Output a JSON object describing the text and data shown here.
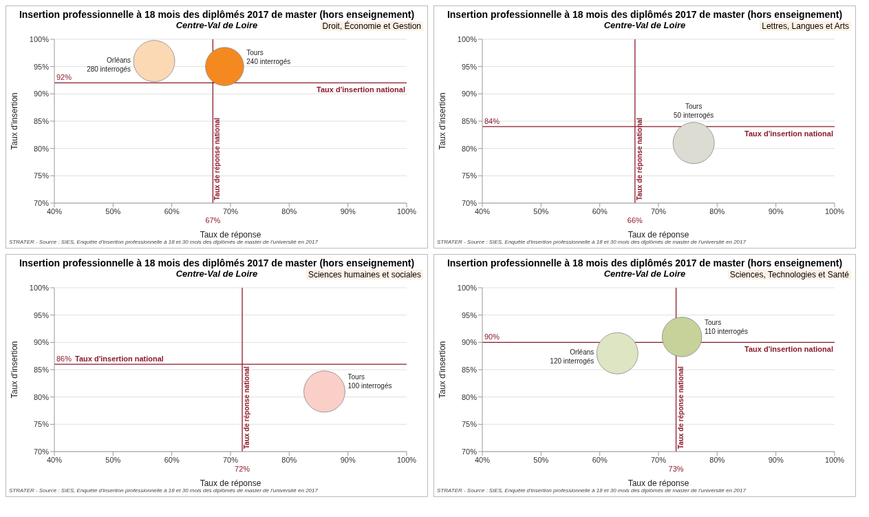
{
  "chart_data": [
    {
      "type": "bubble",
      "title": "Insertion professionnelle à 18 mois des diplômés 2017 de master (hors enseignement)",
      "subtitle": "Centre-Val de Loire",
      "xlabel": "Taux de réponse",
      "ylabel": "Taux d'insertion",
      "xlim": [
        40,
        100
      ],
      "ylim": [
        70,
        100
      ],
      "xticks": [
        {
          "value": 40,
          "label": "40%"
        },
        {
          "value": 50,
          "label": "50%"
        },
        {
          "value": 60,
          "label": "60%"
        },
        {
          "value": 70,
          "label": "70%"
        },
        {
          "value": 80,
          "label": "80%"
        },
        {
          "value": 90,
          "label": "90%"
        },
        {
          "value": 100,
          "label": "100%"
        }
      ],
      "yticks": [
        {
          "value": 70,
          "label": "70%"
        },
        {
          "value": 75,
          "label": "75%"
        },
        {
          "value": 80,
          "label": "80%"
        },
        {
          "value": 85,
          "label": "85%"
        },
        {
          "value": 90,
          "label": "90%"
        },
        {
          "value": 95,
          "label": "95%"
        },
        {
          "value": 100,
          "label": "100%"
        }
      ],
      "grid": "y",
      "series": [
        {
          "name": "Orléans",
          "color": "#fbd9b5",
          "x": [
            57
          ],
          "values": [
            96
          ],
          "sizes": [
            1
          ]
        },
        {
          "name": "Tours",
          "color": "#f4891f",
          "x": [
            69
          ],
          "values": [
            95
          ],
          "sizes": [
            0.86
          ]
        }
      ],
      "ref_lines": [
        {
          "axis": "x",
          "value": 67,
          "label": "Taux de réponse national",
          "color": "#8b1a2b"
        },
        {
          "axis": "y",
          "value": 92,
          "label": "Taux d'insertion national",
          "color": "#8b1a2b"
        }
      ],
      "annotations": [
        "Droit, Économie et Gestion",
        "280 interrogés",
        "240 interrogés",
        "67%",
        "92%",
        "STRATER - Source : SIES, Enquête d'insertion professionnelle à 18 et 30 mois des diplômés de master de l'université en 2017"
      ]
    },
    {
      "type": "bubble",
      "title": "Insertion professionnelle à 18 mois des diplômés 2017 de master (hors enseignement)",
      "subtitle": "Centre-Val de Loire",
      "xlabel": "Taux de réponse",
      "ylabel": "Taux d'insertion",
      "xlim": [
        40,
        100
      ],
      "ylim": [
        70,
        100
      ],
      "xticks": [
        {
          "value": 40,
          "label": "40%"
        },
        {
          "value": 50,
          "label": "50%"
        },
        {
          "value": 60,
          "label": "60%"
        },
        {
          "value": 70,
          "label": "70%"
        },
        {
          "value": 80,
          "label": "80%"
        },
        {
          "value": 90,
          "label": "90%"
        },
        {
          "value": 100,
          "label": "100%"
        }
      ],
      "yticks": [
        {
          "value": 70,
          "label": "70%"
        },
        {
          "value": 75,
          "label": "75%"
        },
        {
          "value": 80,
          "label": "80%"
        },
        {
          "value": 85,
          "label": "85%"
        },
        {
          "value": 90,
          "label": "90%"
        },
        {
          "value": 95,
          "label": "95%"
        },
        {
          "value": 100,
          "label": "100%"
        }
      ],
      "grid": "y",
      "series": [
        {
          "name": "Tours",
          "color": "#dcdcd2",
          "x": [
            76
          ],
          "values": [
            81
          ],
          "sizes": [
            1
          ]
        }
      ],
      "ref_lines": [
        {
          "axis": "x",
          "value": 66,
          "label": "Taux de réponse national",
          "color": "#8b1a2b"
        },
        {
          "axis": "y",
          "value": 84,
          "label": "Taux d'insertion national",
          "color": "#8b1a2b"
        }
      ],
      "annotations": [
        "Lettres, Langues et Arts",
        "50 interrogés",
        "66%",
        "84%",
        "STRATER - Source : SIES, Enquête d'insertion professionnelle à 18 et 30 mois des diplômés de master de l'université en 2017"
      ]
    },
    {
      "type": "bubble",
      "title": "Insertion professionnelle à 18 mois des diplômés 2017 de master (hors enseignement)",
      "subtitle": "Centre-Val de Loire",
      "xlabel": "Taux de réponse",
      "ylabel": "Taux d'insertion",
      "xlim": [
        40,
        100
      ],
      "ylim": [
        70,
        100
      ],
      "xticks": [
        {
          "value": 40,
          "label": "40%"
        },
        {
          "value": 50,
          "label": "50%"
        },
        {
          "value": 60,
          "label": "60%"
        },
        {
          "value": 70,
          "label": "70%"
        },
        {
          "value": 80,
          "label": "80%"
        },
        {
          "value": 90,
          "label": "90%"
        },
        {
          "value": 100,
          "label": "100%"
        }
      ],
      "yticks": [
        {
          "value": 70,
          "label": "70%"
        },
        {
          "value": 75,
          "label": "75%"
        },
        {
          "value": 80,
          "label": "80%"
        },
        {
          "value": 85,
          "label": "85%"
        },
        {
          "value": 90,
          "label": "90%"
        },
        {
          "value": 95,
          "label": "95%"
        },
        {
          "value": 100,
          "label": "100%"
        }
      ],
      "grid": "y",
      "series": [
        {
          "name": "Tours",
          "color": "#f9cfc8",
          "x": [
            86
          ],
          "values": [
            81
          ],
          "sizes": [
            1
          ]
        }
      ],
      "ref_lines": [
        {
          "axis": "x",
          "value": 72,
          "label": "Taux de réponse national",
          "color": "#8b1a2b"
        },
        {
          "axis": "y",
          "value": 86,
          "label": "Taux d'insertion national",
          "color": "#8b1a2b"
        }
      ],
      "annotations": [
        "Sciences humaines et sociales",
        "100 interrogés",
        "72%",
        "86%",
        "STRATER - Source : SIES, Enquête d'insertion professionnelle à 18 et 30 mois des diplômés de master de l'université en 2017"
      ]
    },
    {
      "type": "bubble",
      "title": "Insertion professionnelle à 18 mois des diplômés 2017 de master (hors enseignement)",
      "subtitle": "Centre-Val de Loire",
      "xlabel": "Taux de réponse",
      "ylabel": "Taux d'insertion",
      "xlim": [
        40,
        100
      ],
      "ylim": [
        70,
        100
      ],
      "xticks": [
        {
          "value": 40,
          "label": "40%"
        },
        {
          "value": 50,
          "label": "50%"
        },
        {
          "value": 60,
          "label": "60%"
        },
        {
          "value": 70,
          "label": "70%"
        },
        {
          "value": 80,
          "label": "80%"
        },
        {
          "value": 90,
          "label": "90%"
        },
        {
          "value": 100,
          "label": "100%"
        }
      ],
      "yticks": [
        {
          "value": 70,
          "label": "70%"
        },
        {
          "value": 75,
          "label": "75%"
        },
        {
          "value": 80,
          "label": "80%"
        },
        {
          "value": 85,
          "label": "85%"
        },
        {
          "value": 90,
          "label": "90%"
        },
        {
          "value": 95,
          "label": "95%"
        },
        {
          "value": 100,
          "label": "100%"
        }
      ],
      "grid": "y",
      "series": [
        {
          "name": "Orléans",
          "color": "#dde5c3",
          "x": [
            63
          ],
          "values": [
            88
          ],
          "sizes": [
            1
          ]
        },
        {
          "name": "Tours",
          "color": "#c6d29a",
          "x": [
            74
          ],
          "values": [
            91
          ],
          "sizes": [
            0.92
          ]
        }
      ],
      "ref_lines": [
        {
          "axis": "x",
          "value": 73,
          "label": "Taux de réponse national",
          "color": "#8b1a2b"
        },
        {
          "axis": "y",
          "value": 90,
          "label": "Taux d'insertion national",
          "color": "#8b1a2b"
        }
      ],
      "annotations": [
        "Sciences, Technologies et Santé",
        "120 interrogés",
        "110 interrogés",
        "73%",
        "90%",
        "STRATER - Source : SIES, Enquête d'insertion professionnelle à 18 et 30 mois des diplômés de master de l'université en 2017"
      ]
    }
  ]
}
